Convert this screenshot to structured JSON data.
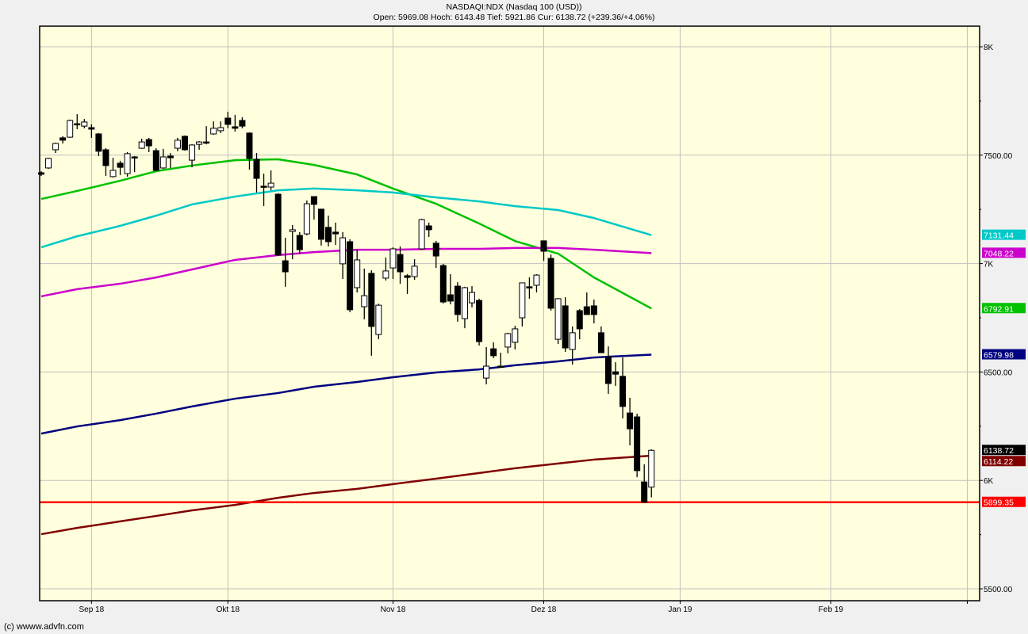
{
  "header": {
    "title": "NASDAQI:NDX (Nasdaq 100 (USD))",
    "quote": "Open: 5969.08 Hoch: 6143.48 Tief: 5921.86 Cur: 6138.72 (+239.36/+4.06%)"
  },
  "footer": {
    "copyright": "(c) wwww.advfn.com"
  },
  "colors": {
    "plot_bg": "#ffffdd",
    "page_bg": "#f0f0f0",
    "grid": "#c0c0c0",
    "up_candle": "#ffffff",
    "down_candle": "#000000"
  },
  "chart_data": {
    "type": "candlestick",
    "title": "NASDAQI:NDX (Nasdaq 100 (USD))",
    "ylim": [
      5450,
      8100
    ],
    "y_scale": "linear",
    "grid": true,
    "y_ticks": [
      {
        "value": 8000,
        "label": "8K"
      },
      {
        "value": 7500,
        "label": "7500.00"
      },
      {
        "value": 7000,
        "label": "7K"
      },
      {
        "value": 6500,
        "label": "6500.00"
      },
      {
        "value": 6000,
        "label": "6K"
      },
      {
        "value": 5500,
        "label": "5500.00"
      }
    ],
    "x_ticks": [
      {
        "date": "2018-09-04",
        "label": "Sep 18"
      },
      {
        "date": "2018-10-01",
        "label": "Okt 18"
      },
      {
        "date": "2018-11-01",
        "label": "Nov 18"
      },
      {
        "date": "2018-12-03",
        "label": "Dez 18"
      },
      {
        "date": "2019-01-02",
        "label": "Jan 19"
      },
      {
        "date": "2019-02-01",
        "label": "Feb 19"
      },
      {
        "date": "2019-03-01",
        "label": ""
      }
    ],
    "x_end_date": "2019-03-08",
    "candles_fields": [
      "date",
      "open",
      "high",
      "low",
      "close"
    ],
    "candles": [
      [
        "2018-08-23",
        7419,
        7426,
        7404,
        7412
      ],
      [
        "2018-08-24",
        7441,
        7488,
        7437,
        7485
      ],
      [
        "2018-08-27",
        7525,
        7558,
        7510,
        7554
      ],
      [
        "2018-08-28",
        7580,
        7587,
        7554,
        7569
      ],
      [
        "2018-08-29",
        7583,
        7664,
        7580,
        7660
      ],
      [
        "2018-08-30",
        7645,
        7689,
        7620,
        7642
      ],
      [
        "2018-08-31",
        7634,
        7667,
        7624,
        7653
      ],
      [
        "2018-09-04",
        7627,
        7642,
        7580,
        7620
      ],
      [
        "2018-09-05",
        7598,
        7602,
        7496,
        7518
      ],
      [
        "2018-09-06",
        7525,
        7532,
        7404,
        7452
      ],
      [
        "2018-09-07",
        7401,
        7488,
        7397,
        7430
      ],
      [
        "2018-09-10",
        7463,
        7474,
        7408,
        7444
      ],
      [
        "2018-09-11",
        7415,
        7514,
        7401,
        7507
      ],
      [
        "2018-09-12",
        7492,
        7496,
        7422,
        7488
      ],
      [
        "2018-09-13",
        7532,
        7576,
        7529,
        7561
      ],
      [
        "2018-09-14",
        7572,
        7580,
        7514,
        7543
      ],
      [
        "2018-09-17",
        7521,
        7532,
        7426,
        7430
      ],
      [
        "2018-09-18",
        7441,
        7529,
        7437,
        7492
      ],
      [
        "2018-09-19",
        7496,
        7510,
        7441,
        7488
      ],
      [
        "2018-09-20",
        7532,
        7580,
        7518,
        7569
      ],
      [
        "2018-09-21",
        7587,
        7591,
        7521,
        7525
      ],
      [
        "2018-09-24",
        7477,
        7550,
        7444,
        7547
      ],
      [
        "2018-09-25",
        7550,
        7565,
        7525,
        7561
      ],
      [
        "2018-09-26",
        7561,
        7634,
        7550,
        7558
      ],
      [
        "2018-09-27",
        7598,
        7656,
        7594,
        7624
      ],
      [
        "2018-09-28",
        7613,
        7656,
        7602,
        7627
      ],
      [
        "2018-10-01",
        7671,
        7700,
        7624,
        7642
      ],
      [
        "2018-10-02",
        7631,
        7686,
        7609,
        7624
      ],
      [
        "2018-10-03",
        7660,
        7675,
        7624,
        7634
      ],
      [
        "2018-10-04",
        7602,
        7605,
        7433,
        7485
      ],
      [
        "2018-10-05",
        7481,
        7510,
        7328,
        7393
      ],
      [
        "2018-10-08",
        7357,
        7415,
        7265,
        7353
      ],
      [
        "2018-10-09",
        7353,
        7430,
        7338,
        7371
      ],
      [
        "2018-10-10",
        7320,
        7324,
        7035,
        7039
      ],
      [
        "2018-10-11",
        7013,
        7119,
        6893,
        6962
      ],
      [
        "2018-10-12",
        7148,
        7178,
        7020,
        7156
      ],
      [
        "2018-10-15",
        7130,
        7145,
        7046,
        7064
      ],
      [
        "2018-10-16",
        7137,
        7291,
        7130,
        7276
      ],
      [
        "2018-10-17",
        7309,
        7309,
        7203,
        7273
      ],
      [
        "2018-10-18",
        7251,
        7251,
        7083,
        7112
      ],
      [
        "2018-10-19",
        7167,
        7221,
        7079,
        7101
      ],
      [
        "2018-10-22",
        7145,
        7189,
        7086,
        7137
      ],
      [
        "2018-10-23",
        6999,
        7145,
        6929,
        7119
      ],
      [
        "2018-10-24",
        7101,
        7112,
        6776,
        6787
      ],
      [
        "2018-10-25",
        6889,
        7064,
        6867,
        7017
      ],
      [
        "2018-10-26",
        6801,
        6977,
        6743,
        6852
      ],
      [
        "2018-10-29",
        6955,
        6969,
        6575,
        6710
      ],
      [
        "2018-10-30",
        6673,
        6815,
        6651,
        6808
      ],
      [
        "2018-10-31",
        6933,
        7028,
        6922,
        6966
      ],
      [
        "2018-11-01",
        6980,
        7075,
        6929,
        7068
      ],
      [
        "2018-11-02",
        7042,
        7079,
        6907,
        6962
      ],
      [
        "2018-11-05",
        6944,
        6951,
        6860,
        6936
      ],
      [
        "2018-11-06",
        6940,
        7020,
        6925,
        6988
      ],
      [
        "2018-11-07",
        7068,
        7207,
        7064,
        7203
      ],
      [
        "2018-11-08",
        7174,
        7189,
        7123,
        7156
      ],
      [
        "2018-11-09",
        7094,
        7105,
        6980,
        7035
      ],
      [
        "2018-11-12",
        6991,
        6999,
        6816,
        6823
      ],
      [
        "2018-11-13",
        6856,
        6951,
        6812,
        6827
      ],
      [
        "2018-11-14",
        6896,
        6914,
        6732,
        6765
      ],
      [
        "2018-11-15",
        6746,
        6893,
        6702,
        6889
      ],
      [
        "2018-11-16",
        6819,
        6896,
        6798,
        6867
      ],
      [
        "2018-11-19",
        6830,
        6838,
        6622,
        6640
      ],
      [
        "2018-11-20",
        6472,
        6615,
        6443,
        6527
      ],
      [
        "2018-11-21",
        6607,
        6637,
        6564,
        6575
      ],
      [
        "2018-11-23",
        6527,
        6589,
        6523,
        6523
      ],
      [
        "2018-11-26",
        6615,
        6681,
        6586,
        6677
      ],
      [
        "2018-11-27",
        6637,
        6713,
        6604,
        6699
      ],
      [
        "2018-11-28",
        6750,
        6911,
        6710,
        6911
      ],
      [
        "2018-11-29",
        6893,
        6936,
        6838,
        6889
      ],
      [
        "2018-11-30",
        6900,
        6951,
        6867,
        6947
      ],
      [
        "2018-12-03",
        7105,
        7105,
        7013,
        7057
      ],
      [
        "2018-12-04",
        7024,
        7042,
        6783,
        6794
      ],
      [
        "2018-12-06",
        6651,
        6841,
        6629,
        6838
      ],
      [
        "2018-12-07",
        6805,
        6845,
        6593,
        6611
      ],
      [
        "2018-12-10",
        6604,
        6710,
        6534,
        6681
      ],
      [
        "2018-12-11",
        6783,
        6790,
        6651,
        6699
      ],
      [
        "2018-12-12",
        6801,
        6867,
        6765,
        6765
      ],
      [
        "2018-12-13",
        6805,
        6834,
        6724,
        6765
      ],
      [
        "2018-12-14",
        6681,
        6710,
        6589,
        6589
      ],
      [
        "2018-12-17",
        6571,
        6618,
        6399,
        6447
      ],
      [
        "2018-12-18",
        6501,
        6545,
        6436,
        6490
      ],
      [
        "2018-12-19",
        6480,
        6567,
        6286,
        6341
      ],
      [
        "2018-12-20",
        6311,
        6381,
        6162,
        6238
      ],
      [
        "2018-12-21",
        6293,
        6308,
        6015,
        6045
      ],
      [
        "2018-12-24",
        5993,
        6074,
        5898,
        5899.35
      ],
      [
        "2018-12-26",
        5969.08,
        6143.48,
        5921.86,
        6138.72
      ]
    ],
    "series": [
      {
        "color": "#00c000",
        "last_label": "6792.91",
        "dates": [
          "2018-08-23",
          "2018-08-30",
          "2018-09-10",
          "2018-09-17",
          "2018-09-24",
          "2018-10-02",
          "2018-10-10",
          "2018-10-17",
          "2018-10-25",
          "2018-11-01",
          "2018-11-09",
          "2018-11-19",
          "2018-11-27",
          "2018-12-06",
          "2018-12-13",
          "2018-12-26"
        ],
        "values": [
          7298,
          7335,
          7382,
          7426,
          7452,
          7477,
          7481,
          7455,
          7411,
          7346,
          7276,
          7185,
          7104,
          7046,
          6936,
          6792.91
        ]
      },
      {
        "color": "#00c8c8",
        "last_label": "7131.44",
        "dates": [
          "2018-08-23",
          "2018-08-30",
          "2018-09-10",
          "2018-09-17",
          "2018-09-24",
          "2018-10-02",
          "2018-10-10",
          "2018-10-17",
          "2018-10-25",
          "2018-11-01",
          "2018-11-09",
          "2018-11-19",
          "2018-11-27",
          "2018-12-06",
          "2018-12-13",
          "2018-12-26"
        ],
        "values": [
          7075,
          7126,
          7174,
          7221,
          7273,
          7309,
          7338,
          7346,
          7338,
          7328,
          7305,
          7287,
          7265,
          7247,
          7210,
          7131.44
        ]
      },
      {
        "color": "#cc00cc",
        "last_label": "7048.22",
        "dates": [
          "2018-08-23",
          "2018-08-30",
          "2018-09-10",
          "2018-09-17",
          "2018-09-24",
          "2018-10-02",
          "2018-10-10",
          "2018-10-17",
          "2018-10-25",
          "2018-11-01",
          "2018-11-09",
          "2018-11-19",
          "2018-11-27",
          "2018-12-06",
          "2018-12-13",
          "2018-12-26"
        ],
        "values": [
          6849,
          6882,
          6907,
          6936,
          6973,
          7017,
          7039,
          7053,
          7064,
          7064,
          7068,
          7068,
          7072,
          7072,
          7064,
          7048.22
        ]
      },
      {
        "color": "#000080",
        "last_label": "6579.98",
        "dates": [
          "2018-08-23",
          "2018-08-30",
          "2018-09-10",
          "2018-09-17",
          "2018-09-24",
          "2018-10-02",
          "2018-10-10",
          "2018-10-17",
          "2018-10-25",
          "2018-11-01",
          "2018-11-09",
          "2018-11-19",
          "2018-11-27",
          "2018-12-06",
          "2018-12-13",
          "2018-12-26"
        ],
        "values": [
          6216,
          6249,
          6278,
          6308,
          6341,
          6377,
          6403,
          6432,
          6454,
          6476,
          6498,
          6512,
          6531,
          6549,
          6567,
          6579.98
        ]
      },
      {
        "color": "#800000",
        "last_label": "6114.22",
        "dates": [
          "2018-08-23",
          "2018-08-30",
          "2018-09-10",
          "2018-09-17",
          "2018-09-24",
          "2018-10-02",
          "2018-10-10",
          "2018-10-17",
          "2018-10-25",
          "2018-11-01",
          "2018-11-09",
          "2018-11-19",
          "2018-11-27",
          "2018-12-06",
          "2018-12-13",
          "2018-12-26"
        ],
        "values": [
          5752,
          5781,
          5811,
          5836,
          5862,
          5887,
          5920,
          5942,
          5961,
          5983,
          6008,
          6034,
          6056,
          6078,
          6096,
          6114.22
        ]
      }
    ],
    "horizontal_line": {
      "value": 5899.35,
      "label": "5899.35",
      "color": "#ff0000"
    },
    "current_price": {
      "value": 6138.72,
      "label": "6138.72",
      "color": "#000000"
    }
  }
}
